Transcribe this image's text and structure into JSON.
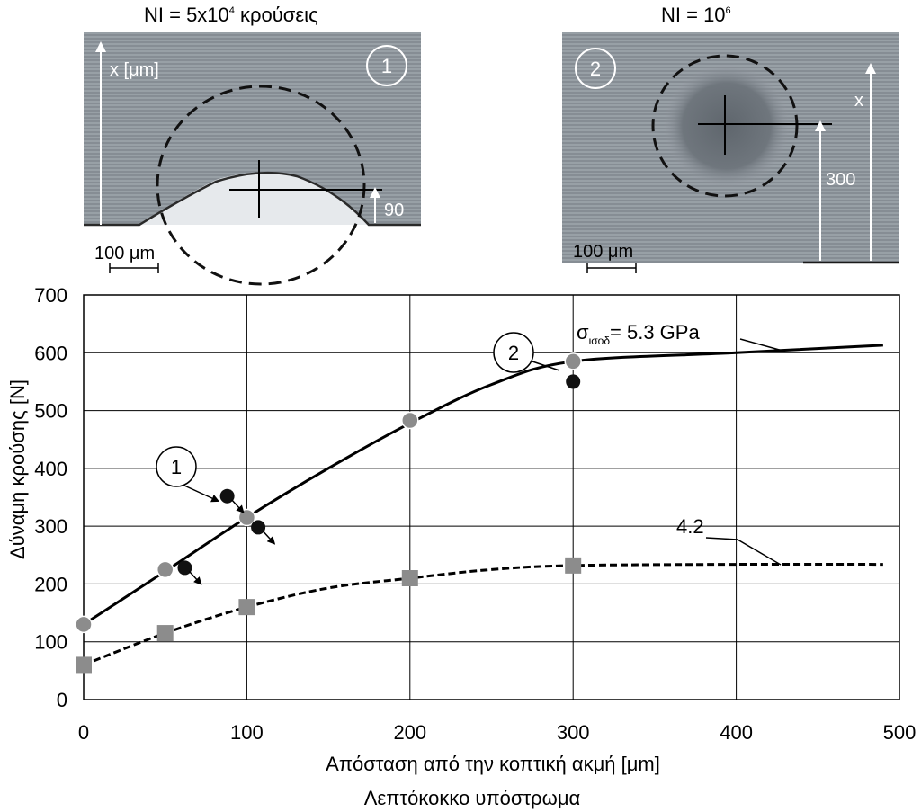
{
  "panels": {
    "left": {
      "title_main": "NI = 5x10",
      "title_sup": "4",
      "title_rest": " κρούσεις",
      "marker": "1",
      "axis_label": "x [μm]",
      "dim_label": "90",
      "scale_label": "100 μm"
    },
    "right": {
      "title_main": "NI = 10",
      "title_sup": "6",
      "marker": "2",
      "axis_label": "x",
      "dim_label": "300",
      "scale_label": "100 μm"
    }
  },
  "chart_data": {
    "type": "line",
    "xlabel": "Απόσταση από την κοπτική ακμή [μm]",
    "ylabel": "Δύναμη κρούσης [N]",
    "caption": "Λεπτόκοκκο υπόστρωμα",
    "xlim": [
      0,
      500
    ],
    "ylim": [
      0,
      700
    ],
    "xticks": [
      0,
      100,
      200,
      300,
      400,
      500
    ],
    "yticks": [
      0,
      100,
      200,
      300,
      400,
      500,
      600,
      700
    ],
    "grid": true,
    "series": [
      {
        "label_main": "σ",
        "label_sub": "ισοδ",
        "label_rest": "= 5.3 GPa",
        "style": "solid",
        "marker": "circle",
        "color": "#8c8c8c",
        "x": [
          0,
          50,
          100,
          200,
          300
        ],
        "y": [
          130,
          225,
          315,
          483,
          585
        ],
        "curve": [
          [
            0,
            130
          ],
          [
            50,
            222
          ],
          [
            100,
            315
          ],
          [
            150,
            400
          ],
          [
            200,
            478
          ],
          [
            250,
            545
          ],
          [
            300,
            585
          ],
          [
            400,
            600
          ],
          [
            490,
            613
          ]
        ]
      },
      {
        "label_main": "4.2",
        "style": "dashed",
        "marker": "square",
        "color": "#8c8c8c",
        "x": [
          0,
          50,
          100,
          200,
          300
        ],
        "y": [
          60,
          115,
          160,
          210,
          232
        ],
        "curve": [
          [
            0,
            60
          ],
          [
            50,
            115
          ],
          [
            100,
            160
          ],
          [
            150,
            193
          ],
          [
            200,
            210
          ],
          [
            250,
            225
          ],
          [
            300,
            232
          ],
          [
            400,
            234
          ],
          [
            490,
            234
          ]
        ]
      }
    ],
    "black_points": [
      {
        "x": 88,
        "y": 352,
        "arrow": true
      },
      {
        "x": 107,
        "y": 298,
        "arrow": true
      },
      {
        "x": 62,
        "y": 228,
        "arrow": true
      },
      {
        "x": 300,
        "y": 550,
        "arrow": false
      }
    ],
    "callouts": [
      "1",
      "2"
    ]
  }
}
